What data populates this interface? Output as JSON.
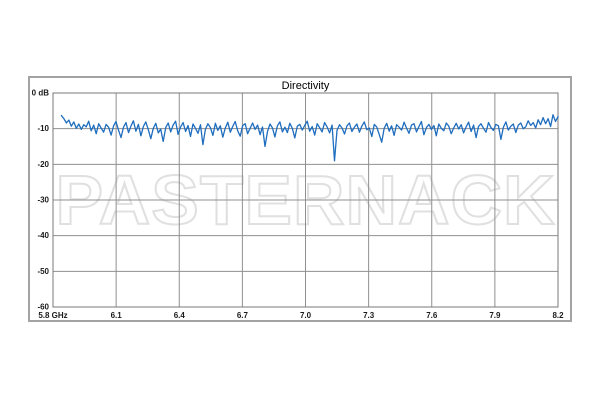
{
  "page": {
    "background": "#ffffff"
  },
  "chart": {
    "watermark": "PASTERNACK",
    "colors": {
      "trace": "#1e6dbe",
      "grid": "#8f8f8f",
      "plot_border": "#7a7a7a",
      "outer_border": "#a3a3a3",
      "text": "#1a1a1a",
      "watermark_stroke": "#e0e0e0",
      "background": "#ffffff"
    }
  },
  "chart_data": {
    "type": "line",
    "title": "Directivity",
    "x_unit": "GHz",
    "y_unit": "dB",
    "xlim": [
      5.8,
      8.2
    ],
    "ylim": [
      -60,
      0
    ],
    "grid": true,
    "legend": false,
    "x_ticks": [
      "5.8 GHz",
      "6.1",
      "6.4",
      "6.7",
      "7.0",
      "7.3",
      "7.6",
      "7.9",
      "8.2"
    ],
    "y_ticks": [
      "0 dB",
      "-10",
      "-20",
      "-30",
      "-40",
      "-50",
      "-60"
    ],
    "series": [
      {
        "name": "Directivity",
        "color": "#1e6dbe",
        "x_spacing": "uniform",
        "x_start": 5.84,
        "x_step": 0.0118,
        "values": [
          -6.3,
          -7.2,
          -8.4,
          -7.6,
          -9.3,
          -8.1,
          -9.9,
          -8.7,
          -10.2,
          -8.9,
          -9.5,
          -7.9,
          -10.6,
          -9.0,
          -11.4,
          -8.6,
          -9.8,
          -11.0,
          -8.8,
          -9.6,
          -11.8,
          -9.2,
          -8.0,
          -10.4,
          -12.5,
          -9.6,
          -8.3,
          -11.1,
          -9.3,
          -7.8,
          -10.7,
          -8.8,
          -12.0,
          -9.4,
          -8.1,
          -10.3,
          -12.8,
          -9.9,
          -8.5,
          -11.2,
          -10.1,
          -13.6,
          -9.7,
          -8.4,
          -10.9,
          -9.0,
          -7.9,
          -11.6,
          -9.5,
          -8.3,
          -10.8,
          -9.1,
          -12.2,
          -8.7,
          -9.9,
          -11.3,
          -8.9,
          -14.5,
          -10.2,
          -8.6,
          -9.7,
          -11.9,
          -8.5,
          -10.5,
          -9.2,
          -12.4,
          -9.8,
          -8.2,
          -11.0,
          -9.4,
          -8.0,
          -10.6,
          -12.1,
          -9.1,
          -8.6,
          -11.4,
          -9.9,
          -8.4,
          -10.2,
          -9.0,
          -11.7,
          -9.5,
          -15.0,
          -10.8,
          -8.7,
          -9.8,
          -12.3,
          -9.2,
          -8.1,
          -10.9,
          -9.6,
          -11.1,
          -8.5,
          -9.9,
          -12.6,
          -9.3,
          -8.8,
          -10.4,
          -9.1,
          -7.9,
          -10.7,
          -9.4,
          -11.8,
          -8.6,
          -9.7,
          -10.9,
          -8.3,
          -9.5,
          -11.2,
          -9.0,
          -19.0,
          -10.5,
          -8.9,
          -9.8,
          -11.5,
          -9.2,
          -8.4,
          -10.8,
          -9.6,
          -8.7,
          -11.0,
          -9.3,
          -8.1,
          -10.3,
          -9.8,
          -12.2,
          -8.8,
          -9.5,
          -11.6,
          -13.8,
          -9.9,
          -8.5,
          -10.7,
          -9.2,
          -11.9,
          -8.9,
          -9.6,
          -10.4,
          -8.2,
          -9.8,
          -11.3,
          -9.0,
          -8.6,
          -10.9,
          -9.4,
          -8.0,
          -11.7,
          -9.7,
          -8.8,
          -10.2,
          -9.1,
          -12.0,
          -8.7,
          -9.9,
          -10.6,
          -8.4,
          -9.3,
          -11.4,
          -9.8,
          -8.5,
          -10.1,
          -8.9,
          -11.2,
          -9.5,
          -8.2,
          -10.8,
          -9.0,
          -12.5,
          -9.4,
          -8.6,
          -9.9,
          -11.0,
          -8.3,
          -9.7,
          -10.5,
          -8.8,
          -9.2,
          -13.0,
          -9.6,
          -8.1,
          -10.4,
          -9.3,
          -8.7,
          -11.1,
          -9.0,
          -8.4,
          -10.0,
          -9.5,
          -7.8,
          -9.1,
          -8.3,
          -9.8,
          -7.5,
          -8.9,
          -6.9,
          -8.6,
          -7.2,
          -9.4,
          -6.1,
          -8.0,
          -6.6
        ]
      }
    ]
  }
}
